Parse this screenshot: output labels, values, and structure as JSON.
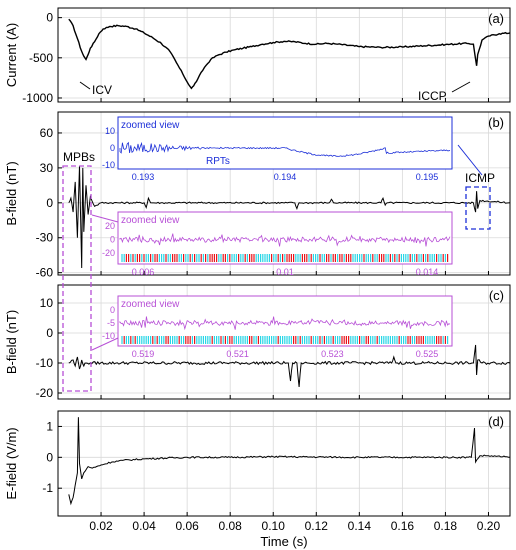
{
  "chart_data": {
    "type": "line",
    "xlabel": "Time (s)",
    "x_ticks": [
      "0.02",
      "0.04",
      "0.06",
      "0.08",
      "0.10",
      "0.12",
      "0.14",
      "0.16",
      "0.18",
      "0.20"
    ],
    "xlim": [
      0.0,
      0.21
    ],
    "panels": [
      {
        "tag": "(a)",
        "ylabel": "Current (A)",
        "ylim": [
          -1050,
          120
        ],
        "y_ticks": [
          0,
          -500,
          -1000
        ],
        "y_tick_labels": [
          "0",
          "-500",
          "-1000"
        ],
        "annotations": [
          {
            "text": "ICV",
            "at": [
              0.01,
              -480
            ]
          },
          {
            "text": "ICCP",
            "at": [
              0.194,
              -560
            ]
          }
        ],
        "series": [
          {
            "points": [
              [
                0.005,
                -20
              ],
              [
                0.007,
                -100
              ],
              [
                0.009,
                -260
              ],
              [
                0.011,
                -420
              ],
              [
                0.012,
                -480
              ],
              [
                0.013,
                -520
              ],
              [
                0.014,
                -460
              ],
              [
                0.015,
                -380
              ],
              [
                0.017,
                -300
              ],
              [
                0.019,
                -200
              ],
              [
                0.021,
                -140
              ],
              [
                0.024,
                -110
              ],
              [
                0.028,
                -100
              ],
              [
                0.032,
                -110
              ],
              [
                0.036,
                -140
              ],
              [
                0.04,
                -190
              ],
              [
                0.044,
                -250
              ],
              [
                0.048,
                -320
              ],
              [
                0.052,
                -420
              ],
              [
                0.055,
                -560
              ],
              [
                0.058,
                -700
              ],
              [
                0.06,
                -800
              ],
              [
                0.062,
                -880
              ],
              [
                0.063,
                -850
              ],
              [
                0.065,
                -760
              ],
              [
                0.068,
                -620
              ],
              [
                0.071,
                -520
              ],
              [
                0.074,
                -470
              ],
              [
                0.078,
                -430
              ],
              [
                0.082,
                -400
              ],
              [
                0.086,
                -380
              ],
              [
                0.09,
                -360
              ],
              [
                0.095,
                -330
              ],
              [
                0.1,
                -310
              ],
              [
                0.105,
                -295
              ],
              [
                0.11,
                -300
              ],
              [
                0.115,
                -320
              ],
              [
                0.12,
                -330
              ],
              [
                0.125,
                -320
              ],
              [
                0.13,
                -330
              ],
              [
                0.14,
                -360
              ],
              [
                0.15,
                -370
              ],
              [
                0.16,
                -365
              ],
              [
                0.17,
                -350
              ],
              [
                0.18,
                -335
              ],
              [
                0.19,
                -320
              ],
              [
                0.193,
                -330
              ],
              [
                0.1945,
                -600
              ],
              [
                0.195,
                -460
              ],
              [
                0.197,
                -280
              ],
              [
                0.2,
                -230
              ],
              [
                0.205,
                -200
              ],
              [
                0.21,
                -190
              ]
            ]
          }
        ]
      },
      {
        "tag": "(b)",
        "ylabel": "B-field (nT)",
        "ylim": [
          -62,
          78
        ],
        "y_ticks": [
          60,
          30,
          0,
          -30,
          -60
        ],
        "y_tick_labels": [
          "60",
          "30",
          "0",
          "-30",
          "-60"
        ],
        "annotations": [
          {
            "text": "MPBs",
            "at": [
              0.011,
              35
            ]
          },
          {
            "text": "ICMP",
            "at": [
              0.194,
              15
            ]
          }
        ],
        "series": [
          {
            "points": [
              [
                0.005,
                0
              ],
              [
                0.006,
                4
              ],
              [
                0.007,
                -8
              ],
              [
                0.008,
                18
              ],
              [
                0.009,
                -30
              ],
              [
                0.01,
                32
              ],
              [
                0.011,
                -56
              ],
              [
                0.0115,
                30
              ],
              [
                0.012,
                -25
              ],
              [
                0.013,
                15
              ],
              [
                0.014,
                -10
              ],
              [
                0.015,
                5
              ],
              [
                0.017,
                -3
              ],
              [
                0.02,
                0
              ],
              [
                0.04,
                0
              ],
              [
                0.041,
                -4
              ],
              [
                0.042,
                4
              ],
              [
                0.043,
                0
              ],
              [
                0.11,
                0
              ],
              [
                0.111,
                -5
              ],
              [
                0.112,
                0
              ],
              [
                0.126,
                0
              ],
              [
                0.127,
                3
              ],
              [
                0.128,
                0
              ],
              [
                0.15,
                0
              ],
              [
                0.151,
                4
              ],
              [
                0.152,
                -2
              ],
              [
                0.153,
                0
              ],
              [
                0.193,
                0
              ],
              [
                0.194,
                -8
              ],
              [
                0.1945,
                10
              ],
              [
                0.195,
                -5
              ],
              [
                0.196,
                2
              ],
              [
                0.21,
                0
              ]
            ]
          }
        ],
        "insets": [
          {
            "label": "zoomed view",
            "color": "#1c2fd8",
            "x_ticks": [
              "0.193",
              "0.194",
              "0.195"
            ],
            "y_ticks": [
              "10",
              "0",
              "-10"
            ],
            "annotations": [
              {
                "text": "RPTs"
              }
            ]
          },
          {
            "label": "zoomed view",
            "color": "#b74fd6",
            "x_ticks": [
              "0.006",
              "0.01",
              "0.014"
            ],
            "y_ticks": [
              "20",
              "0",
              "-20"
            ]
          }
        ]
      },
      {
        "tag": "(c)",
        "ylabel": "B-field (nT)",
        "ylim": [
          -22,
          16
        ],
        "y_ticks": [
          10,
          0,
          -10,
          -20
        ],
        "y_tick_labels": [
          "10",
          "0",
          "-10",
          "-20"
        ],
        "series": [
          {
            "points": [
              [
                0.005,
                -10
              ],
              [
                0.007,
                -9
              ],
              [
                0.008,
                -11
              ],
              [
                0.009,
                -8
              ],
              [
                0.01,
                -12
              ],
              [
                0.011,
                -9
              ],
              [
                0.012,
                -11
              ],
              [
                0.013,
                -10
              ],
              [
                0.015,
                -10
              ],
              [
                0.107,
                -10
              ],
              [
                0.108,
                -16
              ],
              [
                0.109,
                -10
              ],
              [
                0.111,
                -10
              ],
              [
                0.112,
                -18
              ],
              [
                0.113,
                -10
              ],
              [
                0.155,
                -10
              ],
              [
                0.156,
                -8
              ],
              [
                0.157,
                -10
              ],
              [
                0.193,
                -10
              ],
              [
                0.194,
                -4
              ],
              [
                0.1945,
                -14
              ],
              [
                0.195,
                -9
              ],
              [
                0.197,
                -10
              ],
              [
                0.21,
                -10
              ]
            ]
          }
        ],
        "insets": [
          {
            "label": "zoomed view",
            "color": "#b74fd6",
            "x_ticks": [
              "0.519",
              "0.521",
              "0.523",
              "0.525"
            ],
            "y_ticks": [
              "0",
              "-5",
              "-10"
            ]
          }
        ]
      },
      {
        "tag": "(d)",
        "ylabel": "E-field (V/m)",
        "ylim": [
          -1.9,
          1.5
        ],
        "y_ticks": [
          1,
          0,
          -1
        ],
        "y_tick_labels": [
          "1",
          "0",
          "-1"
        ],
        "series": [
          {
            "points": [
              [
                0.005,
                -1.2
              ],
              [
                0.006,
                -1.5
              ],
              [
                0.007,
                -1.3
              ],
              [
                0.008,
                -0.9
              ],
              [
                0.009,
                -0.5
              ],
              [
                0.0095,
                1.3
              ],
              [
                0.01,
                -0.2
              ],
              [
                0.011,
                -0.7
              ],
              [
                0.012,
                -0.5
              ],
              [
                0.014,
                -0.3
              ],
              [
                0.016,
                -0.35
              ],
              [
                0.02,
                -0.25
              ],
              [
                0.025,
                -0.15
              ],
              [
                0.03,
                -0.1
              ],
              [
                0.04,
                -0.05
              ],
              [
                0.06,
                0
              ],
              [
                0.08,
                0
              ],
              [
                0.1,
                0.02
              ],
              [
                0.14,
                0
              ],
              [
                0.18,
                0
              ],
              [
                0.192,
                0
              ],
              [
                0.1935,
                0.95
              ],
              [
                0.194,
                -0.15
              ],
              [
                0.196,
                0.05
              ],
              [
                0.2,
                0.05
              ],
              [
                0.21,
                0
              ]
            ]
          }
        ]
      }
    ]
  }
}
